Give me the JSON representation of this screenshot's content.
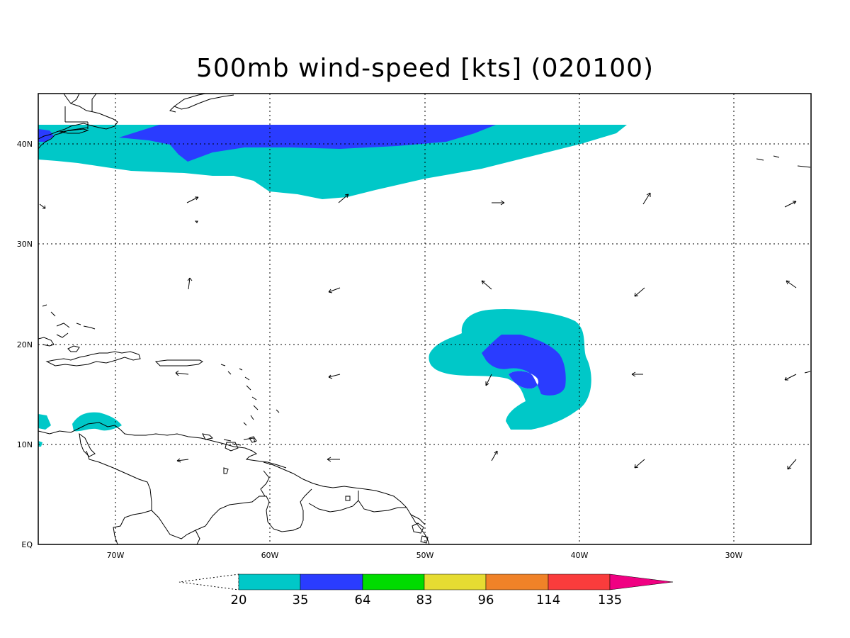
{
  "title": "500mb wind-speed [kts] (020100)",
  "map": {
    "lon_labels": [
      "70W",
      "60W",
      "50W",
      "40W",
      "30W"
    ],
    "lat_labels": [
      "EQ",
      "10N",
      "20N",
      "30N",
      "40N"
    ],
    "lon_range": [
      -75,
      -25
    ],
    "lat_range": [
      0,
      45
    ]
  },
  "colorbar": {
    "levels": [
      "20",
      "35",
      "64",
      "83",
      "96",
      "114",
      "135"
    ],
    "colors": [
      "#00c8c8",
      "#2a3cff",
      "#00dc00",
      "#e6dc32",
      "#f08228",
      "#fa3c3c",
      "#f00082"
    ]
  },
  "shading": {
    "band_20_35": "#00c8c8",
    "band_35_64": "#2a3cff"
  }
}
